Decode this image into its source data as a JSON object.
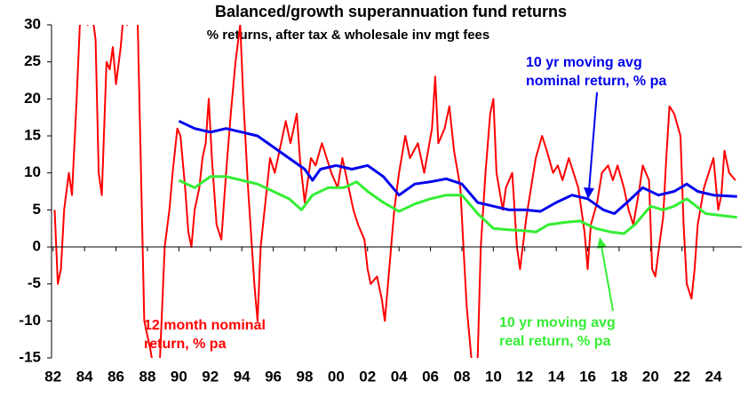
{
  "chart_data": {
    "type": "line",
    "title": "Balanced/growth superannuation fund returns",
    "subtitle": "% returns, after tax & wholesale inv mgt fees",
    "xlim": [
      1981.9,
      2025.8
    ],
    "ylim": [
      -15,
      30
    ],
    "yticks": [
      30,
      25,
      20,
      15,
      10,
      5,
      0,
      -5,
      -10,
      -15
    ],
    "xticks": [
      {
        "value": 1982,
        "label": "82"
      },
      {
        "value": 1984,
        "label": "84"
      },
      {
        "value": 1986,
        "label": "86"
      },
      {
        "value": 1988,
        "label": "88"
      },
      {
        "value": 1990,
        "label": "90"
      },
      {
        "value": 1992,
        "label": "92"
      },
      {
        "value": 1994,
        "label": "94"
      },
      {
        "value": 1996,
        "label": "96"
      },
      {
        "value": 1998,
        "label": "98"
      },
      {
        "value": 2000,
        "label": "00"
      },
      {
        "value": 2002,
        "label": "02"
      },
      {
        "value": 2004,
        "label": "04"
      },
      {
        "value": 2006,
        "label": "06"
      },
      {
        "value": 2008,
        "label": "08"
      },
      {
        "value": 2010,
        "label": "10"
      },
      {
        "value": 2012,
        "label": "12"
      },
      {
        "value": 2014,
        "label": "14"
      },
      {
        "value": 2016,
        "label": "16"
      },
      {
        "value": 2018,
        "label": "18"
      },
      {
        "value": 2020,
        "label": "20"
      },
      {
        "value": 2022,
        "label": "22"
      },
      {
        "value": 2024,
        "label": "24"
      }
    ],
    "series": [
      {
        "name": "12 month nominal return, % pa",
        "color": "#ff0000",
        "x": [
          1982.1,
          1982.3,
          1982.5,
          1982.7,
          1983,
          1983.2,
          1983.5,
          1983.7,
          1983.9,
          1984.2,
          1984.4,
          1984.7,
          1984.9,
          1985.1,
          1985.4,
          1985.6,
          1985.8,
          1986,
          1986.3,
          1986.5,
          1986.7,
          1987,
          1987.3,
          1987.8,
          1988.2,
          1988.5,
          1988.8,
          1988.9,
          1989.1,
          1989.4,
          1989.6,
          1989.9,
          1990.1,
          1990.4,
          1990.6,
          1990.8,
          1991,
          1991.3,
          1991.5,
          1991.7,
          1991.9,
          1992.1,
          1992.4,
          1992.7,
          1993,
          1993.3,
          1993.6,
          1993.9,
          1994.1,
          1994.4,
          1994.8,
          1995,
          1995.2,
          1995.6,
          1995.8,
          1996.1,
          1996.5,
          1996.8,
          1997.1,
          1997.5,
          1997.7,
          1998,
          1998.4,
          1998.7,
          1999.1,
          1999.4,
          1999.7,
          2000.1,
          2000.4,
          2000.8,
          2001.1,
          2001.4,
          2001.8,
          2002,
          2002.2,
          2002.6,
          2002.9,
          2003.1,
          2003.5,
          2003.7,
          2004,
          2004.4,
          2004.7,
          2005.2,
          2005.6,
          2006.1,
          2006.3,
          2006.5,
          2006.9,
          2007.2,
          2007.5,
          2007.9,
          2008.1,
          2008.3,
          2008.6,
          2008.8,
          2009,
          2009.2,
          2009.5,
          2009.8,
          2010,
          2010.2,
          2010.6,
          2010.8,
          2011.2,
          2011.5,
          2011.7,
          2012.1,
          2012.4,
          2012.7,
          2013.1,
          2013.4,
          2013.8,
          2014.1,
          2014.4,
          2014.8,
          2015.1,
          2015.4,
          2015.8,
          2016,
          2016.2,
          2016.6,
          2016.9,
          2017.3,
          2017.6,
          2017.9,
          2018.3,
          2018.6,
          2018.9,
          2019.3,
          2019.5,
          2019.9,
          2020.1,
          2020.3,
          2020.6,
          2020.8,
          2021,
          2021.2,
          2021.5,
          2021.9,
          2022.1,
          2022.3,
          2022.6,
          2022.8,
          2023,
          2023.4,
          2023.7,
          2024,
          2024.3,
          2024.5,
          2024.7,
          2025,
          2025.4
        ],
        "values": [
          5,
          -5,
          -3,
          5,
          10,
          7,
          20,
          30,
          33,
          30,
          33,
          28,
          10,
          7,
          25,
          24,
          27,
          22,
          27,
          32,
          30,
          35,
          38,
          -10,
          -14,
          -18,
          -15,
          -10,
          0,
          5,
          10,
          16,
          15,
          8,
          2,
          0,
          5,
          8,
          12,
          14,
          20,
          12,
          3,
          1,
          10,
          18,
          25,
          30,
          20,
          8,
          -5,
          -10,
          0,
          8,
          12,
          10,
          14,
          17,
          14,
          18,
          12,
          6,
          12,
          11,
          14,
          12,
          10,
          8,
          12,
          8,
          5,
          3,
          1,
          -3,
          -5,
          -4,
          -7,
          -10,
          0,
          5,
          10,
          15,
          12,
          14,
          10,
          16,
          23,
          14,
          16,
          19,
          13,
          8,
          0,
          -8,
          -15,
          -18,
          -15,
          0,
          10,
          18,
          20,
          10,
          5,
          8,
          10,
          0,
          -3,
          4,
          8,
          12,
          15,
          13,
          10,
          11,
          9,
          12,
          10,
          8,
          2,
          -3,
          3,
          6,
          10,
          11,
          9,
          11,
          8,
          5,
          3,
          8,
          11,
          9,
          -3,
          -4,
          1,
          4,
          12,
          19,
          18,
          15,
          3,
          -5,
          -7,
          -3,
          3,
          8,
          10,
          12,
          5,
          7,
          13,
          10,
          9
        ]
      },
      {
        "name": "10 yr moving avg nominal return, % pa",
        "color": "#0000ee",
        "x": [
          1990,
          1991,
          1992,
          1993,
          1994,
          1995,
          1996,
          1997,
          1998,
          1998.5,
          1999,
          2000,
          2001,
          2002,
          2003,
          2004,
          2005,
          2006,
          2007,
          2008,
          2009,
          2010,
          2011,
          2012,
          2013,
          2014,
          2015,
          2016,
          2017,
          2017.7,
          2018.5,
          2019.5,
          2020.5,
          2021.5,
          2022.3,
          2023,
          2024,
          2025.5
        ],
        "values": [
          17,
          16,
          15.5,
          16,
          15.5,
          15,
          13.5,
          12,
          10.5,
          9,
          10.5,
          11,
          10.5,
          11,
          9.5,
          7,
          8.5,
          8.8,
          9.2,
          8.5,
          6,
          5.5,
          5,
          5,
          4.8,
          6,
          7,
          6.5,
          5,
          4.5,
          6,
          8,
          7,
          7.5,
          8.5,
          7.5,
          7,
          6.8
        ]
      },
      {
        "name": "10 yr moving avg real return, % pa",
        "color": "#33ee33",
        "x": [
          1990,
          1991,
          1992,
          1993,
          1994,
          1995,
          1996,
          1997,
          1997.8,
          1998.5,
          1999.5,
          2000.5,
          2001.3,
          2002,
          2003,
          2004,
          2005,
          2006,
          2007,
          2008,
          2009,
          2010,
          2011,
          2012,
          2012.7,
          2013.5,
          2014.5,
          2015.5,
          2016.5,
          2017.5,
          2018.3,
          2019,
          2020,
          2020.8,
          2021.5,
          2022.3,
          2023.5,
          2025.5
        ],
        "values": [
          9,
          8,
          9.5,
          9.5,
          9,
          8.5,
          7.5,
          6.5,
          5,
          7,
          8,
          8,
          8.8,
          7.5,
          6,
          4.8,
          5.8,
          6.5,
          7,
          7,
          4.5,
          2.5,
          2.3,
          2.2,
          2,
          3,
          3.3,
          3.5,
          2.5,
          2,
          1.8,
          3,
          5.5,
          5,
          5.5,
          6.5,
          4.5,
          4
        ]
      }
    ],
    "annotations": [
      {
        "lines": [
          "12 month nominal",
          "return, % pa"
        ],
        "color": "#ff0000"
      },
      {
        "lines": [
          "10 yr moving avg",
          "nominal return, % pa"
        ],
        "color": "#0000ee"
      },
      {
        "lines": [
          "10 yr moving avg",
          "real return, % pa"
        ],
        "color": "#33ee33"
      }
    ]
  }
}
